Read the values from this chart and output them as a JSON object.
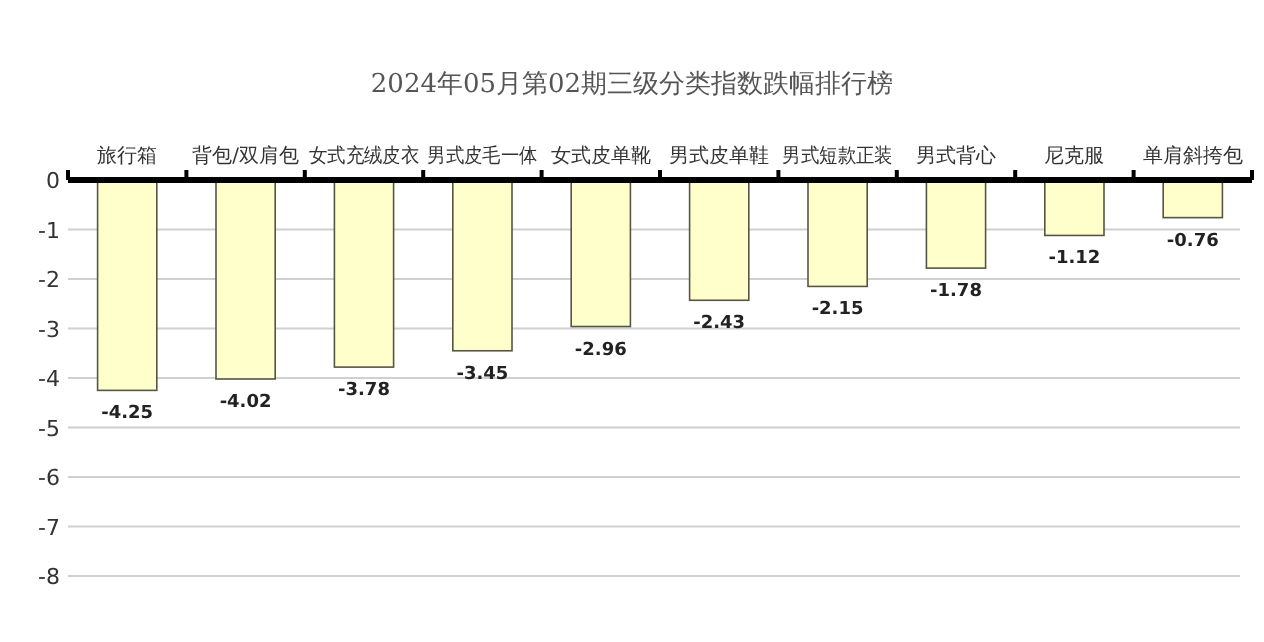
{
  "chart_data": {
    "type": "bar",
    "title": "2024年05月第02期三级分类指数跌幅排行榜",
    "categories": [
      "旅行箱",
      "背包/双肩包",
      "女式充绒皮衣",
      "男式皮毛一体",
      "女式皮单靴",
      "男式皮单鞋",
      "男式短款正装",
      "男式背心",
      "尼克服",
      "单肩斜挎包"
    ],
    "values": [
      -4.25,
      -4.02,
      -3.78,
      -3.45,
      -2.96,
      -2.43,
      -2.15,
      -1.78,
      -1.12,
      -0.76
    ],
    "color": "#ffffcc",
    "ylim": [
      -8,
      0
    ],
    "yticks": [
      0,
      -1,
      -2,
      -3,
      -4,
      -5,
      -6,
      -7,
      -8
    ],
    "grid": "y",
    "data_labels": true
  }
}
